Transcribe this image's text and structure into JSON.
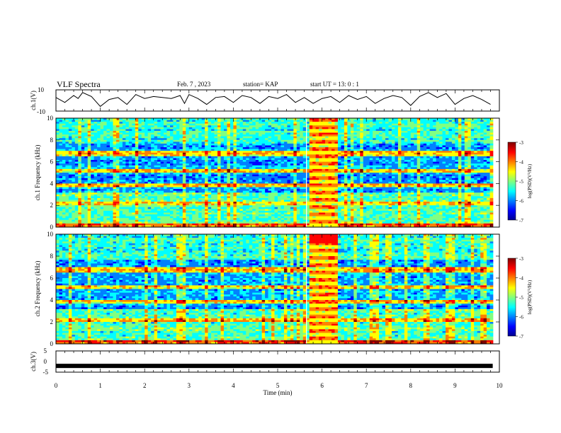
{
  "header": {
    "title": "VLF Spectra",
    "date": "Feb. 7 , 2023",
    "station": "station= KAP",
    "start": "start UT = 13: 0 : 1"
  },
  "chart_data": [
    {
      "type": "line",
      "ylabel": "ch.1(V)",
      "ylim": [
        -10,
        10
      ],
      "yticks": [
        "10",
        "-10"
      ],
      "xlim": [
        0,
        10
      ],
      "series": [
        {
          "x": [
            0,
            0.2,
            0.4,
            0.5,
            0.6,
            0.8,
            1.0,
            1.2,
            1.4,
            1.6,
            1.8,
            2.0,
            2.2,
            2.4,
            2.6,
            2.8,
            2.9,
            3.0,
            3.2,
            3.4,
            3.6,
            3.8,
            4.0,
            4.2,
            4.4,
            4.6,
            4.8,
            5.0,
            5.2,
            5.4,
            5.6,
            5.8,
            6.0,
            6.2,
            6.4,
            6.6,
            6.8,
            7.0,
            7.2,
            7.4,
            7.6,
            7.8,
            8.0,
            8.2,
            8.4,
            8.6,
            8.8,
            9.0,
            9.2,
            9.4,
            9.6,
            9.8
          ],
          "y": [
            3,
            -2,
            5,
            2,
            8,
            4,
            -6,
            1,
            3,
            -4,
            6,
            2,
            4,
            3,
            2,
            5,
            -3,
            6,
            2,
            -4,
            3,
            4,
            -2,
            5,
            3,
            -3,
            4,
            2,
            6,
            -2,
            3,
            -3,
            2,
            4,
            -2,
            5,
            1,
            4,
            -3,
            2,
            5,
            3,
            -5,
            4,
            8,
            3,
            7,
            -4,
            2,
            5,
            1,
            -4
          ]
        }
      ]
    },
    {
      "type": "heatmap",
      "ylabel": "ch.1 Frequency (kHz)",
      "ylim": [
        0,
        10
      ],
      "yticks": [
        "0",
        "2",
        "4",
        "6",
        "8",
        "10"
      ],
      "xlim": [
        0,
        10
      ],
      "colorbar": {
        "label": "log(PSD)(V²/Hz)",
        "range": [
          -7,
          -3
        ],
        "ticks": [
          "-3",
          "-4",
          "-5",
          "-6",
          "-7"
        ]
      }
    },
    {
      "type": "heatmap",
      "ylabel": "ch.2 Frequency (kHz)",
      "ylim": [
        0,
        10
      ],
      "yticks": [
        "0",
        "2",
        "4",
        "6",
        "8",
        "10"
      ],
      "xlim": [
        0,
        10
      ],
      "colorbar": {
        "label": "log(PSD)(V²/Hz)",
        "range": [
          -7,
          -3
        ],
        "ticks": [
          "-3",
          "-4",
          "-5",
          "-6",
          "-7"
        ]
      }
    },
    {
      "type": "line",
      "ylabel": "ch.3(V)",
      "ylim": [
        -5,
        5
      ],
      "yticks": [
        "5",
        "0",
        "-5"
      ],
      "xlim": [
        0,
        10
      ],
      "xlabel": "Time (min)",
      "xticks": [
        "0",
        "1",
        "2",
        "3",
        "4",
        "5",
        "6",
        "7",
        "8",
        "9",
        "10"
      ],
      "series": [
        {
          "x": [
            0,
            9.85
          ],
          "y": [
            -2.2,
            -2.2
          ]
        }
      ]
    }
  ],
  "colors": {
    "jet": [
      "#00008f",
      "#0000ff",
      "#0080ff",
      "#00ffff",
      "#80ff80",
      "#ffff00",
      "#ff8000",
      "#ff0000",
      "#800000"
    ]
  }
}
